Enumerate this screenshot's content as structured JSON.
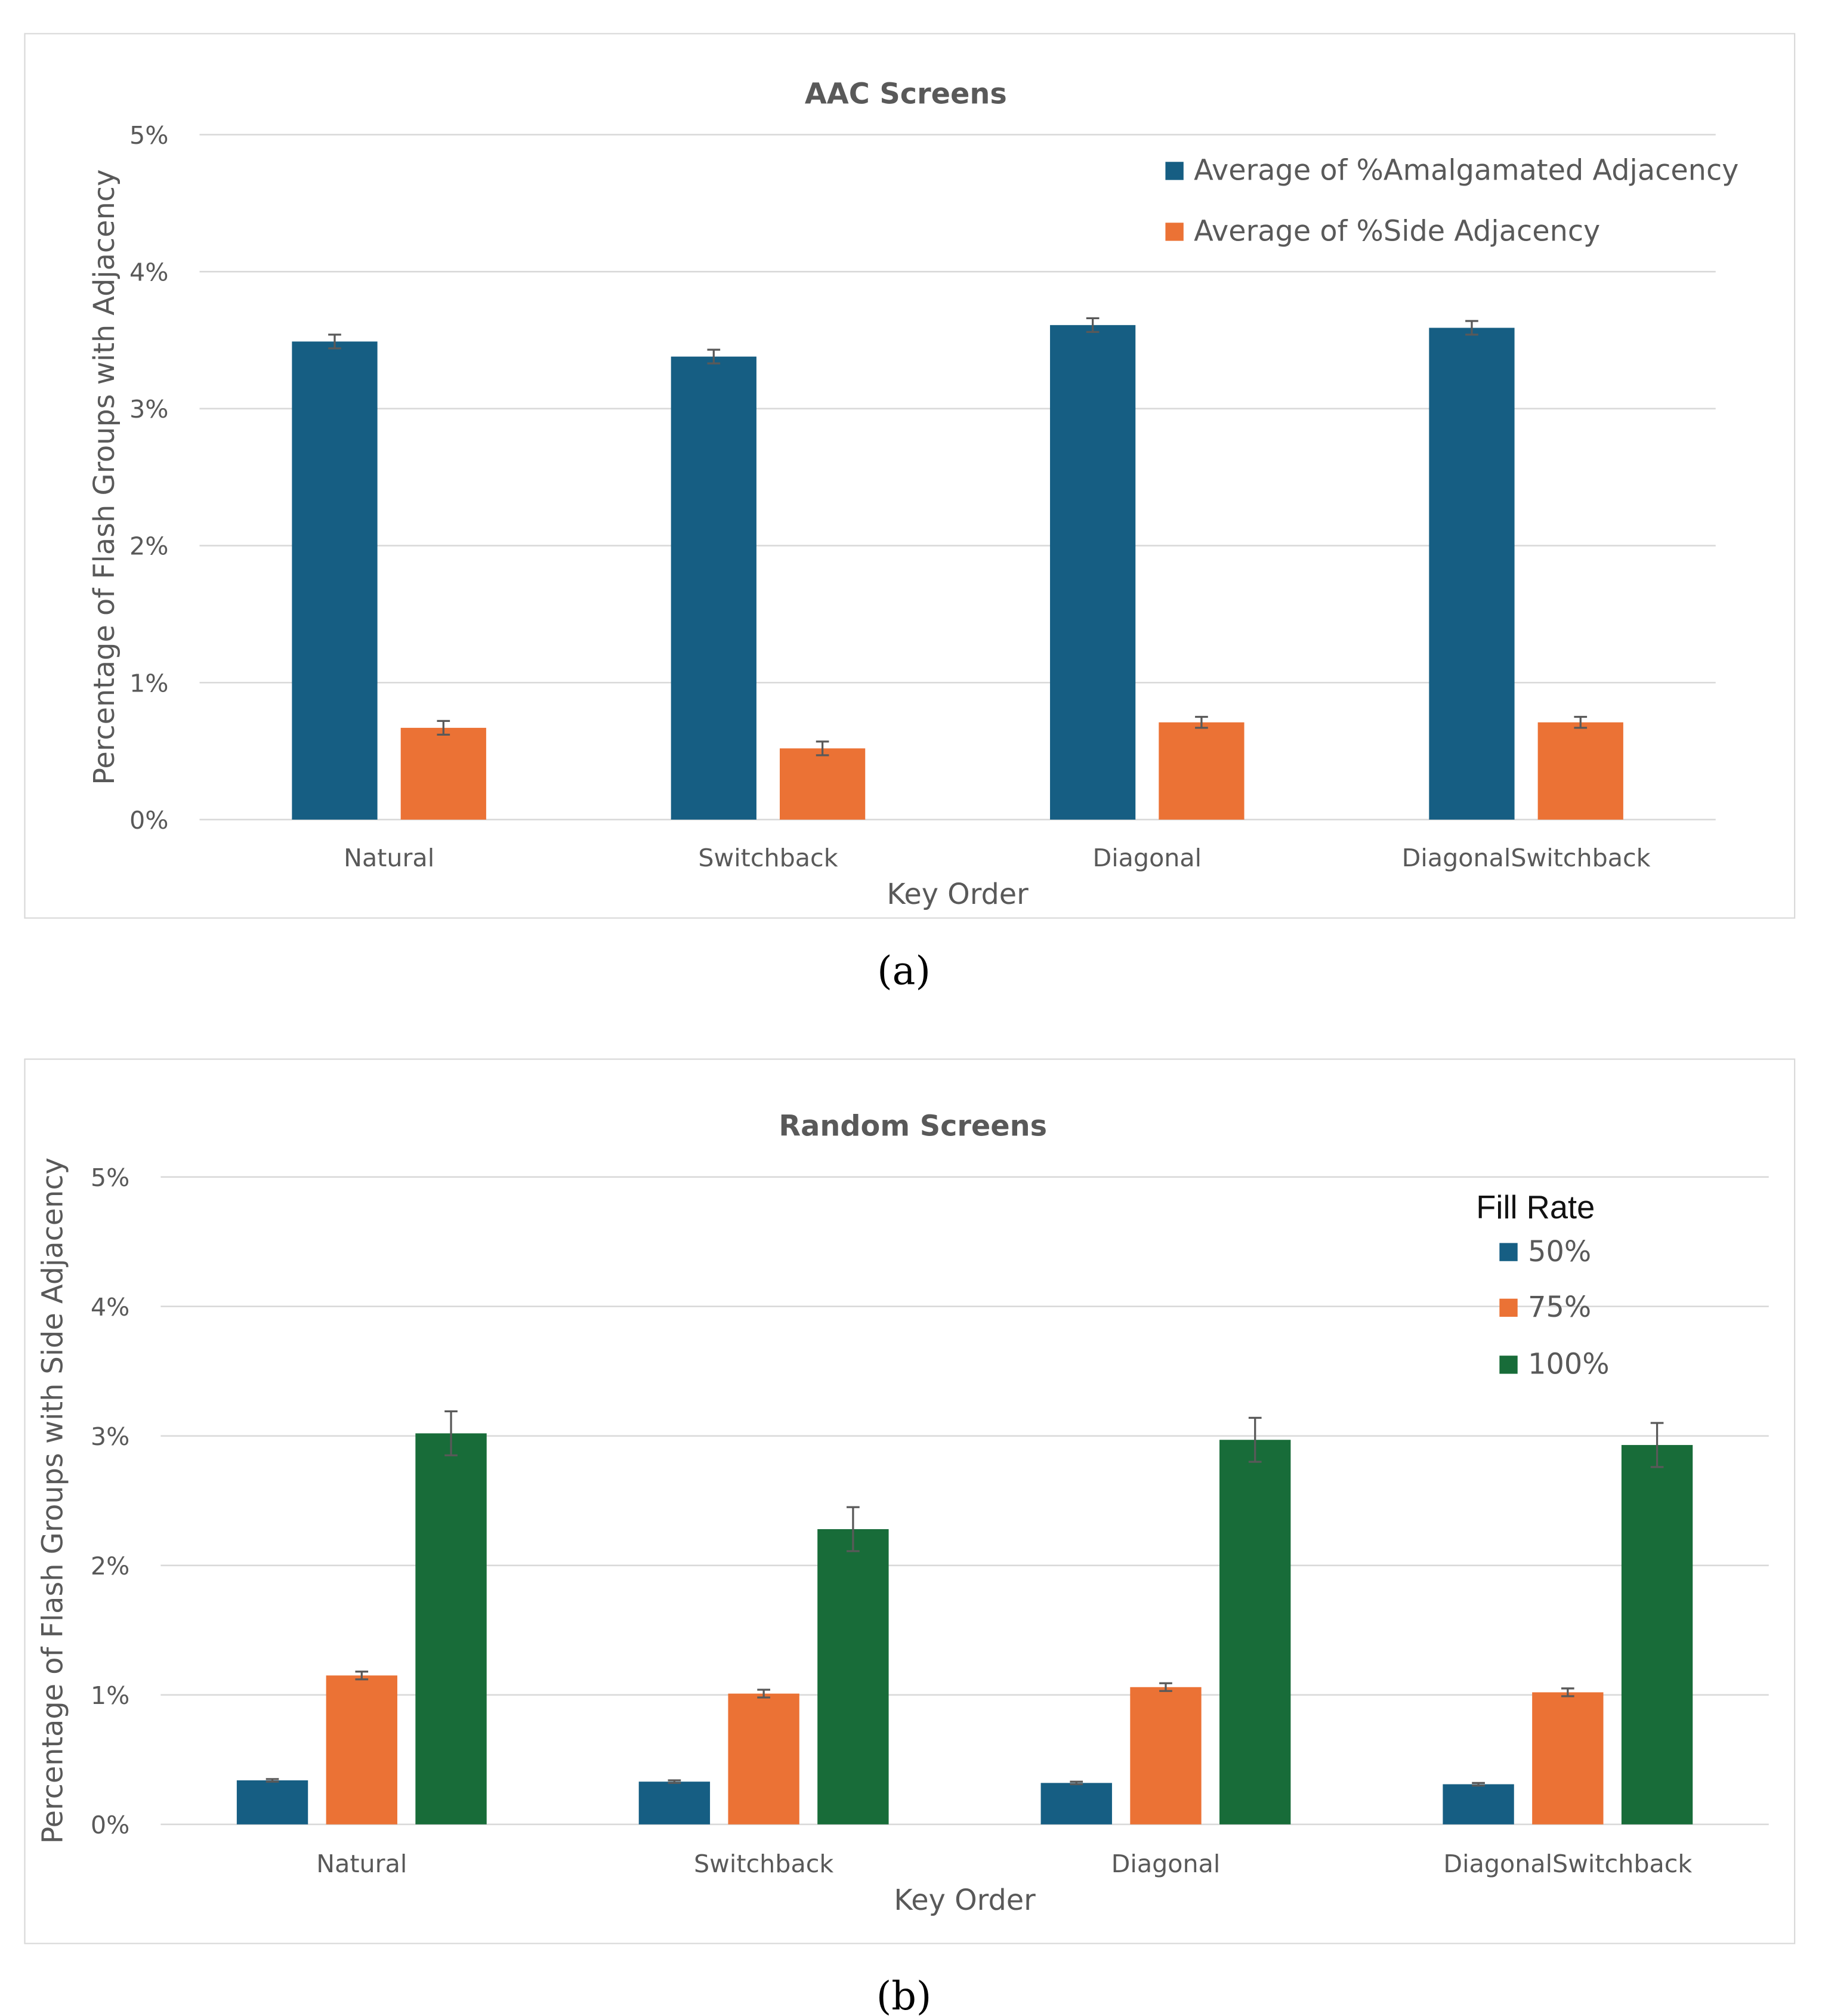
{
  "chart_data": [
    {
      "type": "bar",
      "panel_label": "(a)",
      "title": "AAC Screens",
      "xlabel": "Key Order",
      "ylabel": "Percentage of Flash Groups with Adjacency",
      "ylim": [
        0,
        5
      ],
      "yticks": [
        "0%",
        "1%",
        "2%",
        "3%",
        "4%",
        "5%"
      ],
      "grid": true,
      "legend_position": "top-right",
      "legend_title": "",
      "categories": [
        "Natural",
        "Switchback",
        "Diagonal",
        "DiagonalSwitchback"
      ],
      "series": [
        {
          "name": "Average of %Amalgamated Adjacency",
          "color": "#165e83",
          "values": [
            3.49,
            3.38,
            3.61,
            3.59
          ],
          "errors": [
            0.05,
            0.05,
            0.05,
            0.05
          ]
        },
        {
          "name": "Average of %Side Adjacency",
          "color": "#eb7235",
          "values": [
            0.67,
            0.52,
            0.71,
            0.71
          ],
          "errors": [
            0.05,
            0.05,
            0.04,
            0.04
          ]
        }
      ]
    },
    {
      "type": "bar",
      "panel_label": "(b)",
      "title": "Random Screens",
      "xlabel": "Key Order",
      "ylabel": "Percentage of Flash Groups with Side Adjacency",
      "ylim": [
        0,
        5
      ],
      "yticks": [
        "0%",
        "1%",
        "2%",
        "3%",
        "4%",
        "5%"
      ],
      "grid": true,
      "legend_position": "top-right",
      "legend_title": "Fill Rate",
      "categories": [
        "Natural",
        "Switchback",
        "Diagonal",
        "DiagonalSwitchback"
      ],
      "series": [
        {
          "name": "50%",
          "color": "#165e83",
          "values": [
            0.34,
            0.33,
            0.32,
            0.31
          ],
          "errors": [
            0.01,
            0.01,
            0.01,
            0.01
          ]
        },
        {
          "name": "75%",
          "color": "#eb7235",
          "values": [
            1.15,
            1.01,
            1.06,
            1.02
          ],
          "errors": [
            0.03,
            0.03,
            0.03,
            0.03
          ]
        },
        {
          "name": "100%",
          "color": "#186c39",
          "values": [
            3.02,
            2.28,
            2.97,
            2.93
          ],
          "errors": [
            0.17,
            0.17,
            0.17,
            0.17
          ]
        }
      ]
    }
  ]
}
